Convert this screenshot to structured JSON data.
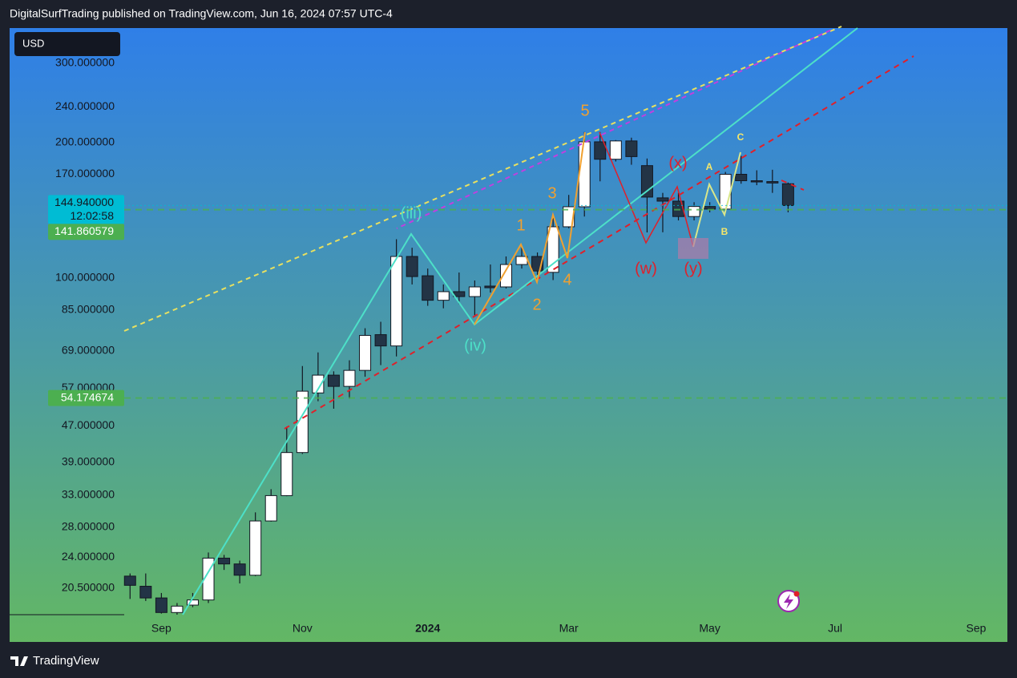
{
  "header": "DigitalSurfTrading published on TradingView.com, Jun 16, 2024 07:57 UTC-4",
  "footer": "TradingView",
  "chart_data": {
    "type": "candlestick",
    "currency": "USD",
    "log_scale": true,
    "ylim": [
      17.9,
      359
    ],
    "yticks": [
      {
        "value": 300,
        "label": "300.000000"
      },
      {
        "value": 240,
        "label": "240.000000"
      },
      {
        "value": 200,
        "label": "200.000000"
      },
      {
        "value": 170,
        "label": "170.000000"
      },
      {
        "value": 100,
        "label": "100.000000"
      },
      {
        "value": 85,
        "label": "85.000000"
      },
      {
        "value": 69,
        "label": "69.000000"
      },
      {
        "value": 57,
        "label": "57.000000"
      },
      {
        "value": 47,
        "label": "47.000000"
      },
      {
        "value": 39,
        "label": "39.000000"
      },
      {
        "value": 33,
        "label": "33.000000"
      },
      {
        "value": 28,
        "label": "28.000000"
      },
      {
        "value": 24,
        "label": "24.000000"
      },
      {
        "value": 20.5,
        "label": "20.500000"
      }
    ],
    "categories": [
      null,
      null,
      "Sep",
      null,
      null,
      null,
      null,
      null,
      null,
      null,
      null,
      "Nov",
      null,
      null,
      null,
      null,
      null,
      null,
      null,
      "2024",
      null,
      null,
      null,
      null,
      null,
      null,
      null,
      null,
      "Mar",
      null,
      null,
      null,
      null,
      null,
      null,
      null,
      null,
      "May",
      null,
      null,
      null,
      null,
      null,
      null,
      null,
      "Jul",
      null,
      null,
      null,
      null,
      null,
      null,
      null,
      null,
      "Sep"
    ],
    "up_color": "#ffffff",
    "down_color": "#233446",
    "open": [
      21.8,
      20.7,
      19.5,
      18.1,
      18.8,
      19.3,
      23.9,
      23.2,
      21.9,
      28.9,
      32.9,
      41.0,
      55.6,
      60.9,
      57.5,
      62.4,
      74.9,
      70.7,
      111.7,
      101.2,
      89.3,
      93.3,
      91.0,
      96.0,
      95.6,
      107.2,
      111.7,
      103.0,
      130.0,
      144.0,
      200.7,
      183.6,
      201.6,
      177.7,
      150.7,
      148.2,
      137,
      144.2,
      142.3,
      170,
      164.5,
      163.8,
      162,
      null,
      null,
      null,
      null,
      null,
      null,
      null,
      null,
      null,
      null,
      null,
      null
    ],
    "high": [
      22.1,
      22.1,
      20.0,
      19.0,
      20.0,
      24.6,
      24.3,
      23.6,
      30.2,
      34.0,
      46.8,
      63.8,
      68.4,
      62.1,
      65.7,
      77.4,
      80.0,
      122.0,
      116.8,
      105.0,
      96.8,
      102.9,
      98.8,
      107.2,
      111.7,
      116.8,
      114.0,
      137.0,
      153.0,
      211,
      211,
      202.5,
      205,
      184.3,
      154.6,
      154.6,
      147.4,
      147.4,
      172.1,
      186.8,
      173.5,
      174,
      163,
      null,
      null,
      null,
      null,
      null,
      null,
      null,
      null,
      null,
      null,
      null,
      null
    ],
    "low": [
      19.4,
      19.2,
      18.0,
      17.9,
      18.6,
      19.0,
      22.5,
      21.0,
      21.8,
      28.8,
      32.8,
      40.7,
      53.3,
      51.3,
      54.0,
      60.4,
      64.1,
      67.0,
      96.8,
      86.8,
      85.7,
      87.6,
      82.3,
      92.9,
      94.8,
      105.0,
      100.8,
      99.0,
      129.0,
      137,
      164,
      181.5,
      178.5,
      126.3,
      126.4,
      134.3,
      134.3,
      140,
      141.7,
      162,
      160.8,
      154.6,
      140,
      null,
      null,
      null,
      null,
      null,
      null,
      null,
      null,
      null,
      null,
      null,
      null
    ],
    "close": [
      20.8,
      19.5,
      18.1,
      18.7,
      19.3,
      23.9,
      23.2,
      21.9,
      28.9,
      32.9,
      41.0,
      56.1,
      60.9,
      57.5,
      62.4,
      74.6,
      70.7,
      111.7,
      100.8,
      89.3,
      93.3,
      91.0,
      95.6,
      95.2,
      107.2,
      111.7,
      103.7,
      130.0,
      144.0,
      200.7,
      183.6,
      201.6,
      186.1,
      151.3,
      148.2,
      137,
      144.2,
      142.3,
      170,
      164.5,
      163.8,
      162.6,
      144.94,
      null,
      null,
      null,
      null,
      null,
      null,
      null,
      null,
      null,
      null,
      null,
      null
    ],
    "price_labels": [
      {
        "value": 144.94,
        "label": "144.940000",
        "countdown": "12:02:58",
        "color": "#00bcd4"
      },
      {
        "value": 141.860579,
        "label": "141.860579",
        "color": "#4caf50"
      },
      {
        "value": 54.174674,
        "label": "54.174674",
        "color": "#4caf50"
      }
    ],
    "annotations": [
      {
        "text": "(iii)",
        "color": "#4de0c8"
      },
      {
        "text": "(iv)",
        "color": "#4de0c8"
      },
      {
        "text": "1",
        "color": "#f0a030"
      },
      {
        "text": "2",
        "color": "#f0a030"
      },
      {
        "text": "3",
        "color": "#f0a030"
      },
      {
        "text": "4",
        "color": "#f0a030"
      },
      {
        "text": "5",
        "color": "#f0a030"
      },
      {
        "text": "(w)",
        "color": "#e0202a"
      },
      {
        "text": "(x)",
        "color": "#e0202a"
      },
      {
        "text": "(y)",
        "color": "#e0202a"
      },
      {
        "text": "A",
        "color": "#f5e66a"
      },
      {
        "text": "B",
        "color": "#f5e66a"
      },
      {
        "text": "C",
        "color": "#f5e66a"
      }
    ]
  }
}
